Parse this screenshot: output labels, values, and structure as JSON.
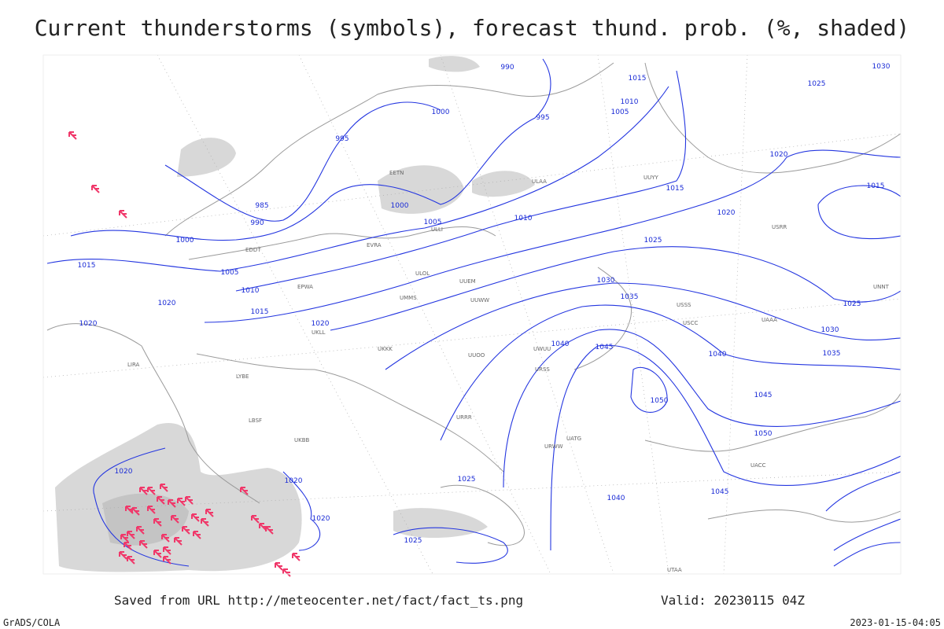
{
  "header": {
    "title": "Current thunderstorms (symbols), forecast thund. prob. (%, shaded)"
  },
  "footer": {
    "source": "Saved from URL http://meteocenter.net/fact/fact_ts.png",
    "valid": "Valid: 20230115 04Z",
    "software": "GrADS/COLA",
    "timestamp": "2023-01-15-04:05"
  },
  "isobar_labels": [
    "990",
    "995",
    "1000",
    "995",
    "985",
    "990",
    "1000",
    "1000",
    "1005",
    "1010",
    "1015",
    "1020",
    "1025",
    "1030",
    "1035",
    "1040",
    "1045",
    "1050",
    "1015",
    "1005",
    "1010",
    "1015",
    "1020",
    "1020",
    "1020",
    "1020",
    "1020",
    "1020",
    "1025",
    "1025",
    "1040",
    "1045",
    "1050",
    "1045",
    "1040",
    "1035",
    "1030",
    "1025",
    "1020",
    "1015",
    "1030",
    "1025",
    "1015",
    "1010",
    "1005"
  ],
  "stations": [
    "EDDT",
    "EPWA",
    "EVRA",
    "EETN",
    "ULLI",
    "ULOL",
    "UUEM",
    "UUWW",
    "UMMS",
    "UKKK",
    "UUOO",
    "URRR",
    "URWW",
    "UATG",
    "UACC",
    "UNNT",
    "USSS",
    "USCC",
    "UWUU",
    "URSS",
    "LIRA",
    "LYBE",
    "LBSF",
    "UKBB",
    "UKLL",
    "UUYY",
    "ULAA",
    "USRR",
    "UAAA",
    "UTAA"
  ]
}
